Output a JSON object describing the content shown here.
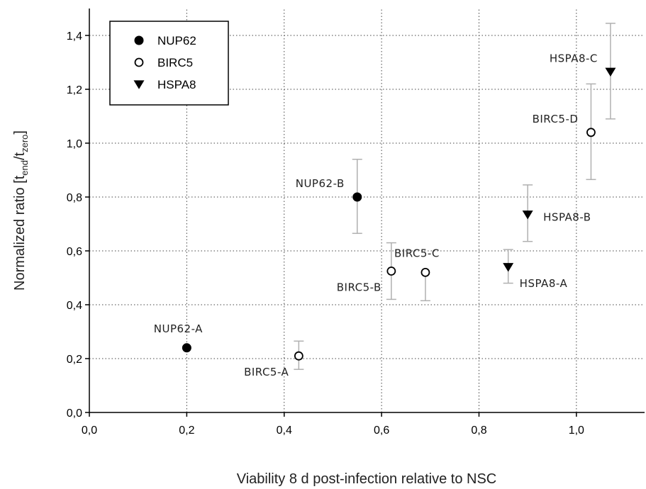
{
  "chart_data": {
    "type": "scatter",
    "xlabel": "Viability 8 d post-infection relative to NSC",
    "ylabel": {
      "main": "Normalized ratio [t",
      "sub1": "end",
      "mid": "/t",
      "sub2": "zero",
      "end": "]"
    },
    "xlim": [
      0,
      1.14
    ],
    "ylim": [
      0,
      1.5
    ],
    "xticks": [
      {
        "value": 0.0,
        "label": "0,0"
      },
      {
        "value": 0.2,
        "label": "0,2"
      },
      {
        "value": 0.4,
        "label": "0,4"
      },
      {
        "value": 0.6,
        "label": "0,6"
      },
      {
        "value": 0.8,
        "label": "0,8"
      },
      {
        "value": 1.0,
        "label": "1,0"
      }
    ],
    "yticks": [
      {
        "value": 0.0,
        "label": "0,0"
      },
      {
        "value": 0.2,
        "label": "0,2"
      },
      {
        "value": 0.4,
        "label": "0,4"
      },
      {
        "value": 0.6,
        "label": "0,6"
      },
      {
        "value": 0.8,
        "label": "0,8"
      },
      {
        "value": 1.0,
        "label": "1,0"
      },
      {
        "value": 1.2,
        "label": "1,2"
      },
      {
        "value": 1.4,
        "label": "1,4"
      }
    ],
    "grid": true,
    "legend_position": "top-left",
    "series": [
      {
        "name": "NUP62",
        "marker": "filled-circle",
        "points": [
          {
            "label": "NUP62-A",
            "x": 0.2,
            "y": 0.24,
            "err_low": null,
            "err_high": null,
            "label_pos": "above"
          },
          {
            "label": "NUP62-B",
            "x": 0.55,
            "y": 0.8,
            "err_low": 0.665,
            "err_high": 0.94,
            "label_pos": "upper-left"
          }
        ]
      },
      {
        "name": "BIRC5",
        "marker": "open-circle",
        "points": [
          {
            "label": "BIRC5-A",
            "x": 0.43,
            "y": 0.21,
            "err_low": 0.16,
            "err_high": 0.265,
            "label_pos": "lower-left"
          },
          {
            "label": "BIRC5-B",
            "x": 0.62,
            "y": 0.525,
            "err_low": 0.42,
            "err_high": 0.63,
            "label_pos": "lower-left"
          },
          {
            "label": "BIRC5-C",
            "x": 0.69,
            "y": 0.52,
            "err_low": 0.415,
            "err_high": null,
            "label_pos": "above"
          },
          {
            "label": "BIRC5-D",
            "x": 1.03,
            "y": 1.04,
            "err_low": 0.865,
            "err_high": 1.22,
            "label_pos": "upper-left"
          }
        ]
      },
      {
        "name": "HSPA8",
        "marker": "filled-triangle-down",
        "points": [
          {
            "label": "HSPA8-A",
            "x": 0.86,
            "y": 0.54,
            "err_low": 0.48,
            "err_high": 0.605,
            "label_pos": "lower-right"
          },
          {
            "label": "HSPA8-B",
            "x": 0.9,
            "y": 0.735,
            "err_low": 0.635,
            "err_high": 0.845,
            "label_pos": "right"
          },
          {
            "label": "HSPA8-C",
            "x": 1.07,
            "y": 1.265,
            "err_low": 1.09,
            "err_high": 1.445,
            "label_pos": "upper-left"
          }
        ]
      }
    ]
  }
}
